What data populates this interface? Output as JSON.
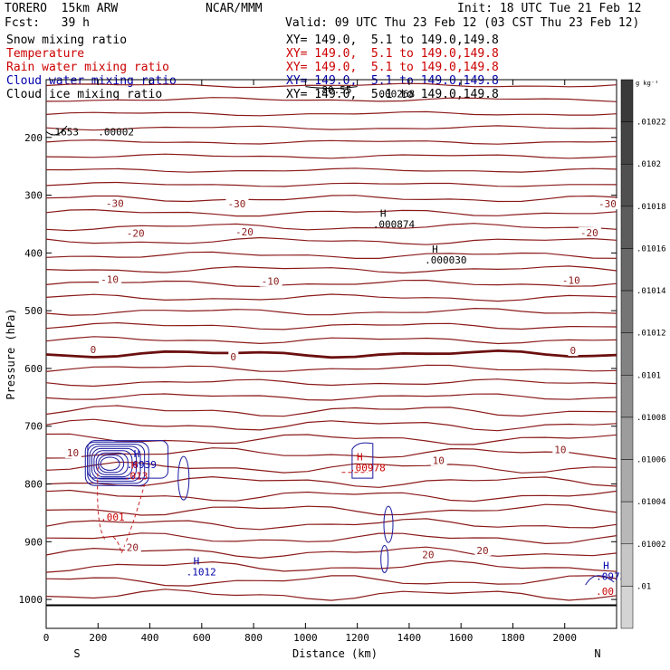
{
  "header": {
    "model": "TORERO  15km ARW",
    "forecast": "Fcst:   39 h",
    "center": "NCAR/MMM",
    "init": "Init: 18 UTC Tue 21 Feb 12",
    "valid": "Valid: 09 UTC Thu 23 Feb 12 (03 CST Thu 23 Feb 12)"
  },
  "fields": [
    {
      "name": "Snow mixing ratio",
      "xy": "XY= 149.0,  5.1 to 149.0,149.8",
      "color": "#000000"
    },
    {
      "name": "Temperature",
      "xy": "XY= 149.0,  5.1 to 149.0,149.8",
      "color": "#cc0000"
    },
    {
      "name": "Rain water mixing ratio",
      "xy": "XY= 149.0,  5.1 to 149.0,149.8",
      "color": "#cc0000"
    },
    {
      "name": "Cloud water mixing ratio",
      "xy": "XY= 149.0,  5.1 to 149.0,149.8",
      "color": "#0000aa"
    },
    {
      "name": "Cloud ice mixing ratio",
      "xy": "XY= 149.0,  5.1 to 149.0,149.8",
      "color": "#000000"
    }
  ],
  "chart_data": {
    "type": "contour",
    "xlabel": "Distance (km)",
    "ylabel": "Pressure (hPa)",
    "xlim": [
      0,
      2200
    ],
    "ylim": [
      1050,
      100
    ],
    "x_ticks": [
      0,
      200,
      400,
      600,
      800,
      1000,
      1200,
      1400,
      1600,
      1800,
      2000
    ],
    "y_ticks": [
      200,
      300,
      400,
      500,
      600,
      700,
      800,
      900,
      1000
    ],
    "x_end_labels": {
      "left": "S",
      "right": "N"
    },
    "temperature_labels": [
      {
        "text": "-30",
        "x": 230,
        "p": 314
      },
      {
        "text": "-30",
        "x": 700,
        "p": 315
      },
      {
        "text": "-30",
        "x": 2130,
        "p": 315
      },
      {
        "text": "-20",
        "x": 310,
        "p": 366
      },
      {
        "text": "-20",
        "x": 730,
        "p": 363
      },
      {
        "text": "-20",
        "x": 2060,
        "p": 365
      },
      {
        "text": "-10",
        "x": 210,
        "p": 446
      },
      {
        "text": "-10",
        "x": 830,
        "p": 449
      },
      {
        "text": "-10",
        "x": 1990,
        "p": 447
      },
      {
        "text": "0",
        "x": 170,
        "p": 567
      },
      {
        "text": "0",
        "x": 710,
        "p": 580
      },
      {
        "text": "0",
        "x": 2020,
        "p": 569
      },
      {
        "text": "10",
        "x": 80,
        "p": 746
      },
      {
        "text": "10",
        "x": 1490,
        "p": 759
      },
      {
        "text": "10",
        "x": 1960,
        "p": 740
      },
      {
        "text": "20",
        "x": 310,
        "p": 910
      },
      {
        "text": "20",
        "x": 1450,
        "p": 922
      },
      {
        "text": "20",
        "x": 1660,
        "p": 915
      }
    ],
    "extrema": [
      {
        "mark": "H",
        "value": ".6939",
        "x": 310,
        "p": 766,
        "color": "#0000aa"
      },
      {
        "mark": "H",
        "value": ".013",
        "x": 300,
        "p": 786,
        "color": "#cc0000"
      },
      {
        "mark": "",
        "value": ".001",
        "x": 210,
        "p": 857,
        "color": "#cc0000"
      },
      {
        "mark": "H",
        "value": ".1012",
        "x": 540,
        "p": 952,
        "color": "#0000aa"
      },
      {
        "mark": "H",
        "value": ".00978",
        "x": 1170,
        "p": 772,
        "color": "#cc0000"
      },
      {
        "mark": "H",
        "value": ".000874",
        "x": 1260,
        "p": 350,
        "color": "#000000"
      },
      {
        "mark": "H",
        "value": ".000030",
        "x": 1460,
        "p": 412,
        "color": "#000000"
      },
      {
        "mark": "",
        "value": ".000268",
        "x": 1260,
        "p": 124,
        "color": "#000000"
      },
      {
        "mark": "",
        "value": ".80.55",
        "x": 1040,
        "p": 117,
        "color": "#000000"
      },
      {
        "mark": "",
        "value": ".1653",
        "x": 10,
        "p": 190,
        "color": "#000000"
      },
      {
        "mark": "",
        "value": ".00002",
        "x": 200,
        "p": 190,
        "color": "#000000"
      },
      {
        "mark": "H",
        "value": ".0973",
        "x": 2120,
        "p": 960,
        "color": "#0000aa"
      },
      {
        "mark": "",
        "value": ".00",
        "x": 2120,
        "p": 986,
        "color": "#cc0000"
      }
    ],
    "colorbar": {
      "unit": "g kg⁻¹",
      "labels": [
        ".01022",
        ".0102",
        ".01018",
        ".01016",
        ".01014",
        ".01012",
        ".0101",
        ".01008",
        ".01006",
        ".01004",
        ".01002",
        ".01"
      ],
      "colors": [
        "#3a3a3a",
        "#444444",
        "#505050",
        "#5c5c5c",
        "#686868",
        "#757575",
        "#828282",
        "#8f8f8f",
        "#9c9c9c",
        "#aaaaaa",
        "#b8b8b8",
        "#c6c6c6",
        "#d4d4d4"
      ]
    }
  }
}
